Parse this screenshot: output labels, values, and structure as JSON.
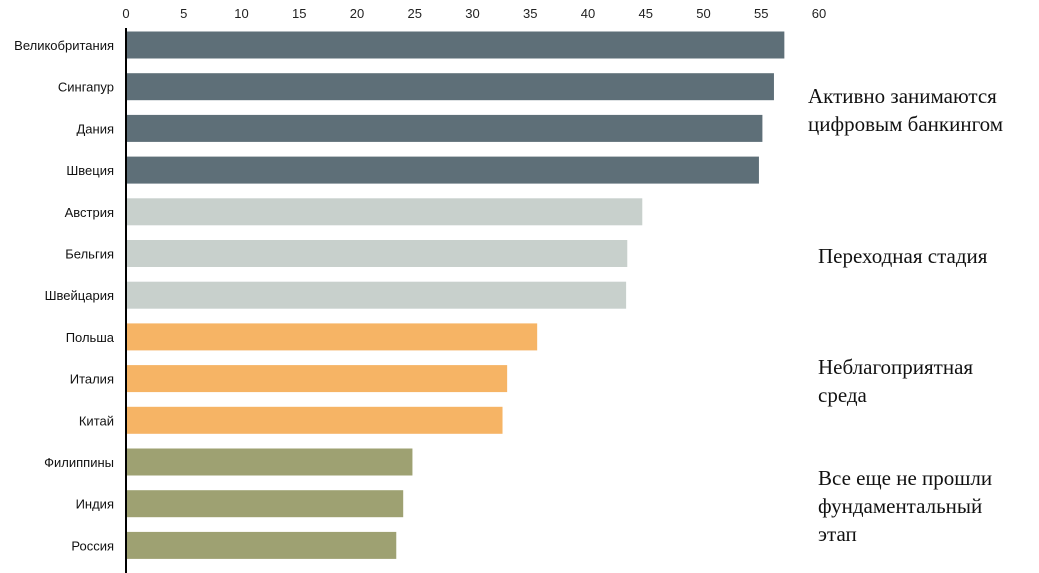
{
  "chart_data": {
    "type": "bar",
    "orientation": "horizontal",
    "categories": [
      "Великобритания",
      "Сингапур",
      "Дания",
      "Швеция",
      "Австрия",
      "Бельгия",
      "Швейцария",
      "Польша",
      "Италия",
      "Китай",
      "Филиппины",
      "Индия",
      "Россия"
    ],
    "values": [
      57,
      56.1,
      55.1,
      54.8,
      44.7,
      43.4,
      43.3,
      35.6,
      33,
      32.6,
      24.8,
      24,
      23.4
    ],
    "xlim": [
      0,
      60
    ],
    "xticks": [
      "0",
      "5",
      "10",
      "15",
      "20",
      "25",
      "30",
      "35",
      "40",
      "45",
      "50",
      "55",
      "60"
    ],
    "axis_position": "top",
    "grid": false,
    "groups": [
      {
        "label_lines": [
          "Активно занимаются",
          "цифровым банкингом"
        ],
        "members": [
          0,
          1,
          2,
          3
        ],
        "color": "#5e6f78"
      },
      {
        "label_lines": [
          "Переходная стадия"
        ],
        "members": [
          4,
          5,
          6
        ],
        "color": "#c8d0cc"
      },
      {
        "label_lines": [
          "Неблагоприятная",
          "среда"
        ],
        "members": [
          7,
          8,
          9
        ],
        "color": "#f6b465"
      },
      {
        "label_lines": [
          "Все еще не прошли",
          "фундаментальный",
          "этап"
        ],
        "members": [
          10,
          11,
          12
        ],
        "color": "#9ea172"
      }
    ]
  }
}
